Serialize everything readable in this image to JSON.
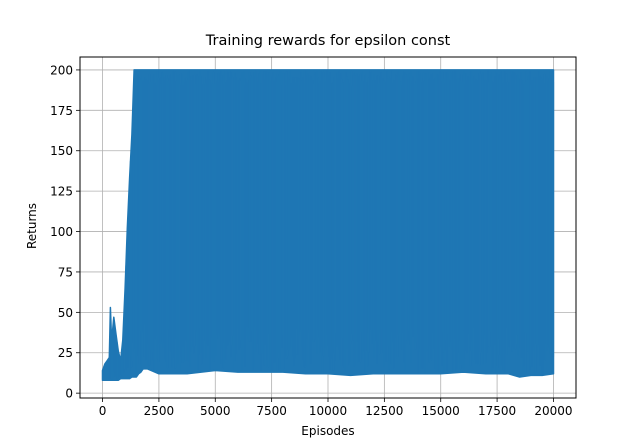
{
  "chart_data": {
    "type": "line",
    "title": "Training rewards for epsilon const",
    "xlabel": "Episodes",
    "ylabel": "Returns",
    "xlim": [
      -1000,
      21000
    ],
    "ylim": [
      -3,
      208
    ],
    "xticks": [
      0,
      2500,
      5000,
      7500,
      10000,
      12500,
      15000,
      17500,
      20000
    ],
    "xtick_labels": [
      "0",
      "2500",
      "5000",
      "7500",
      "10000",
      "12500",
      "15000",
      "17500",
      "20000"
    ],
    "yticks": [
      0,
      25,
      50,
      75,
      100,
      125,
      150,
      175,
      200
    ],
    "ytick_labels": [
      "0",
      "25",
      "50",
      "75",
      "100",
      "125",
      "150",
      "175",
      "200"
    ],
    "grid": true,
    "legend": null,
    "color": "#1f77b4",
    "series": [
      {
        "x": [
          0,
          100,
          200,
          300,
          350,
          400,
          500,
          600,
          700,
          800,
          900,
          1000,
          1100,
          1200,
          1300,
          1400,
          1500,
          1600,
          1700,
          1800,
          2000,
          2500,
          3000,
          3750,
          5000,
          6000,
          7000,
          8000,
          9000,
          10000,
          11000,
          12000,
          13000,
          14000,
          15000,
          16000,
          17000,
          18000,
          18500,
          19000,
          19500,
          20000
        ],
        "max": [
          14,
          18,
          20,
          22,
          53,
          32,
          47,
          36,
          26,
          20,
          33,
          65,
          102,
          133,
          160,
          200,
          200,
          200,
          200,
          200,
          200,
          200,
          200,
          200,
          200,
          200,
          200,
          200,
          200,
          200,
          200,
          200,
          200,
          200,
          200,
          200,
          200,
          200,
          200,
          200,
          200,
          200
        ],
        "min": [
          8,
          8,
          8,
          8,
          8,
          8,
          8,
          8,
          8,
          9,
          9,
          9,
          9,
          9,
          10,
          10,
          10,
          12,
          13,
          15,
          15,
          12,
          12,
          12,
          14,
          13,
          13,
          13,
          12,
          12,
          11,
          12,
          12,
          12,
          12,
          13,
          12,
          12,
          10,
          11,
          11,
          12
        ]
      }
    ]
  }
}
